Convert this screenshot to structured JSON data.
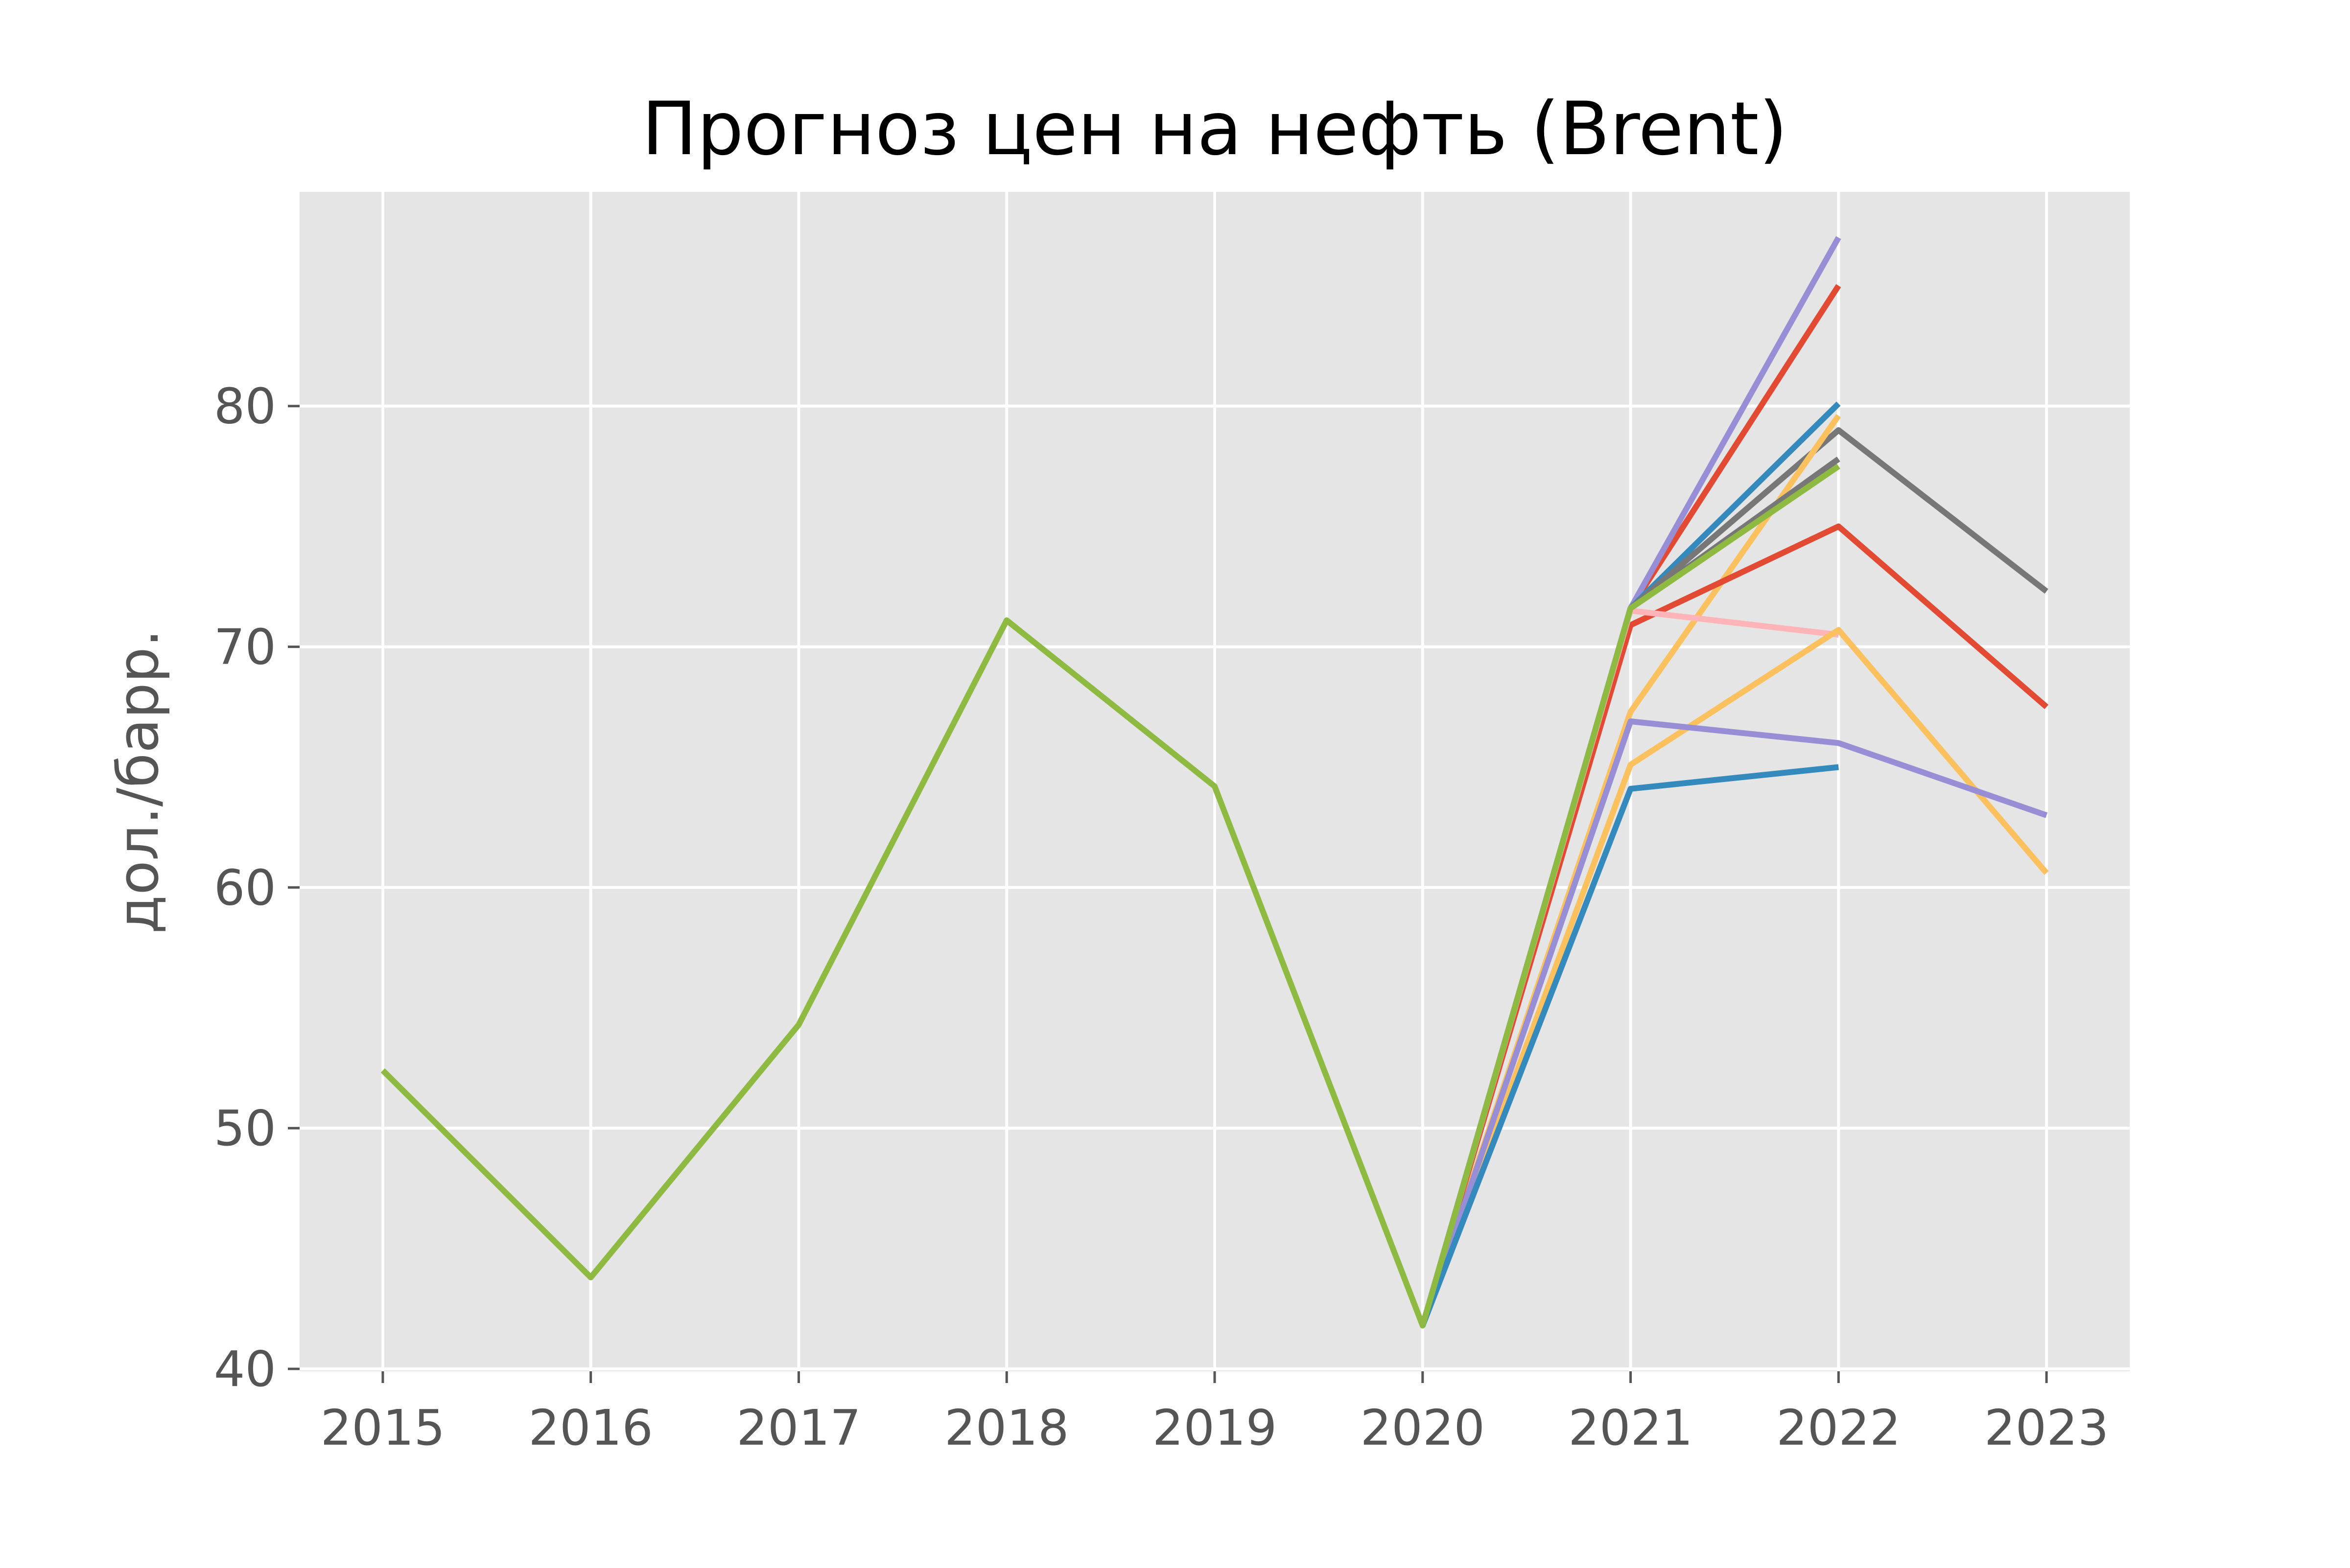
{
  "chart_data": {
    "type": "line",
    "title": "Прогноз цен на нефть (Brent)",
    "xlabel": "",
    "ylabel": "дол./барр.",
    "xlim": [
      2014.6,
      2023.4
    ],
    "ylim": [
      39.9,
      88.9
    ],
    "x_ticks": [
      "2015",
      "2016",
      "2017",
      "2018",
      "2019",
      "2020",
      "2021",
      "2022",
      "2023"
    ],
    "y_ticks": [
      "40",
      "50",
      "60",
      "70",
      "80"
    ],
    "grid": true,
    "legend": "none",
    "series": [
      {
        "color": "#8EBA42",
        "points": [
          [
            2015,
            52.4
          ],
          [
            2016,
            43.8
          ],
          [
            2017,
            54.3
          ],
          [
            2018,
            71.1
          ],
          [
            2019,
            64.2
          ],
          [
            2020,
            41.8
          ],
          [
            2021,
            71.6
          ],
          [
            2022,
            77.5
          ]
        ]
      },
      {
        "color": "#E24A33",
        "points": [
          [
            2020,
            41.8
          ],
          [
            2021,
            71.6
          ],
          [
            2022,
            85.0
          ]
        ]
      },
      {
        "color": "#988ED5",
        "points": [
          [
            2020,
            41.8
          ],
          [
            2021,
            71.6
          ],
          [
            2022,
            87.0
          ]
        ]
      },
      {
        "color": "#348ABD",
        "points": [
          [
            2020,
            41.8
          ],
          [
            2021,
            71.6
          ],
          [
            2022,
            80.1
          ]
        ]
      },
      {
        "color": "#777777",
        "points": [
          [
            2020,
            41.8
          ],
          [
            2021,
            71.6
          ],
          [
            2022,
            79.0
          ],
          [
            2023,
            72.3
          ]
        ]
      },
      {
        "color": "#FBC15E",
        "points": [
          [
            2020,
            41.8
          ],
          [
            2021,
            67.3
          ],
          [
            2022,
            79.6
          ]
        ]
      },
      {
        "color": "#777777",
        "points": [
          [
            2020,
            41.8
          ],
          [
            2021,
            71.6
          ],
          [
            2022,
            77.8
          ]
        ]
      },
      {
        "color": "#E24A33",
        "points": [
          [
            2020,
            41.8
          ],
          [
            2021,
            70.9
          ],
          [
            2022,
            75.0
          ],
          [
            2023,
            67.5
          ]
        ]
      },
      {
        "color": "#FFB5B8",
        "points": [
          [
            2020,
            41.8
          ],
          [
            2021,
            71.5
          ],
          [
            2022,
            70.5
          ]
        ]
      },
      {
        "color": "#FBC15E",
        "points": [
          [
            2020,
            41.8
          ],
          [
            2021,
            65.1
          ],
          [
            2022,
            70.7
          ],
          [
            2023,
            60.6
          ]
        ]
      },
      {
        "color": "#988ED5",
        "points": [
          [
            2020,
            41.8
          ],
          [
            2021,
            66.9
          ],
          [
            2022,
            66.0
          ],
          [
            2023,
            63.0
          ]
        ]
      },
      {
        "color": "#348ABD",
        "points": [
          [
            2020,
            41.8
          ],
          [
            2021,
            64.1
          ],
          [
            2022,
            65.0
          ]
        ]
      },
      {
        "color": "#8EBA42",
        "points": [
          [
            2020,
            41.8
          ],
          [
            2021,
            71.6
          ],
          [
            2022,
            77.5
          ]
        ]
      }
    ]
  }
}
